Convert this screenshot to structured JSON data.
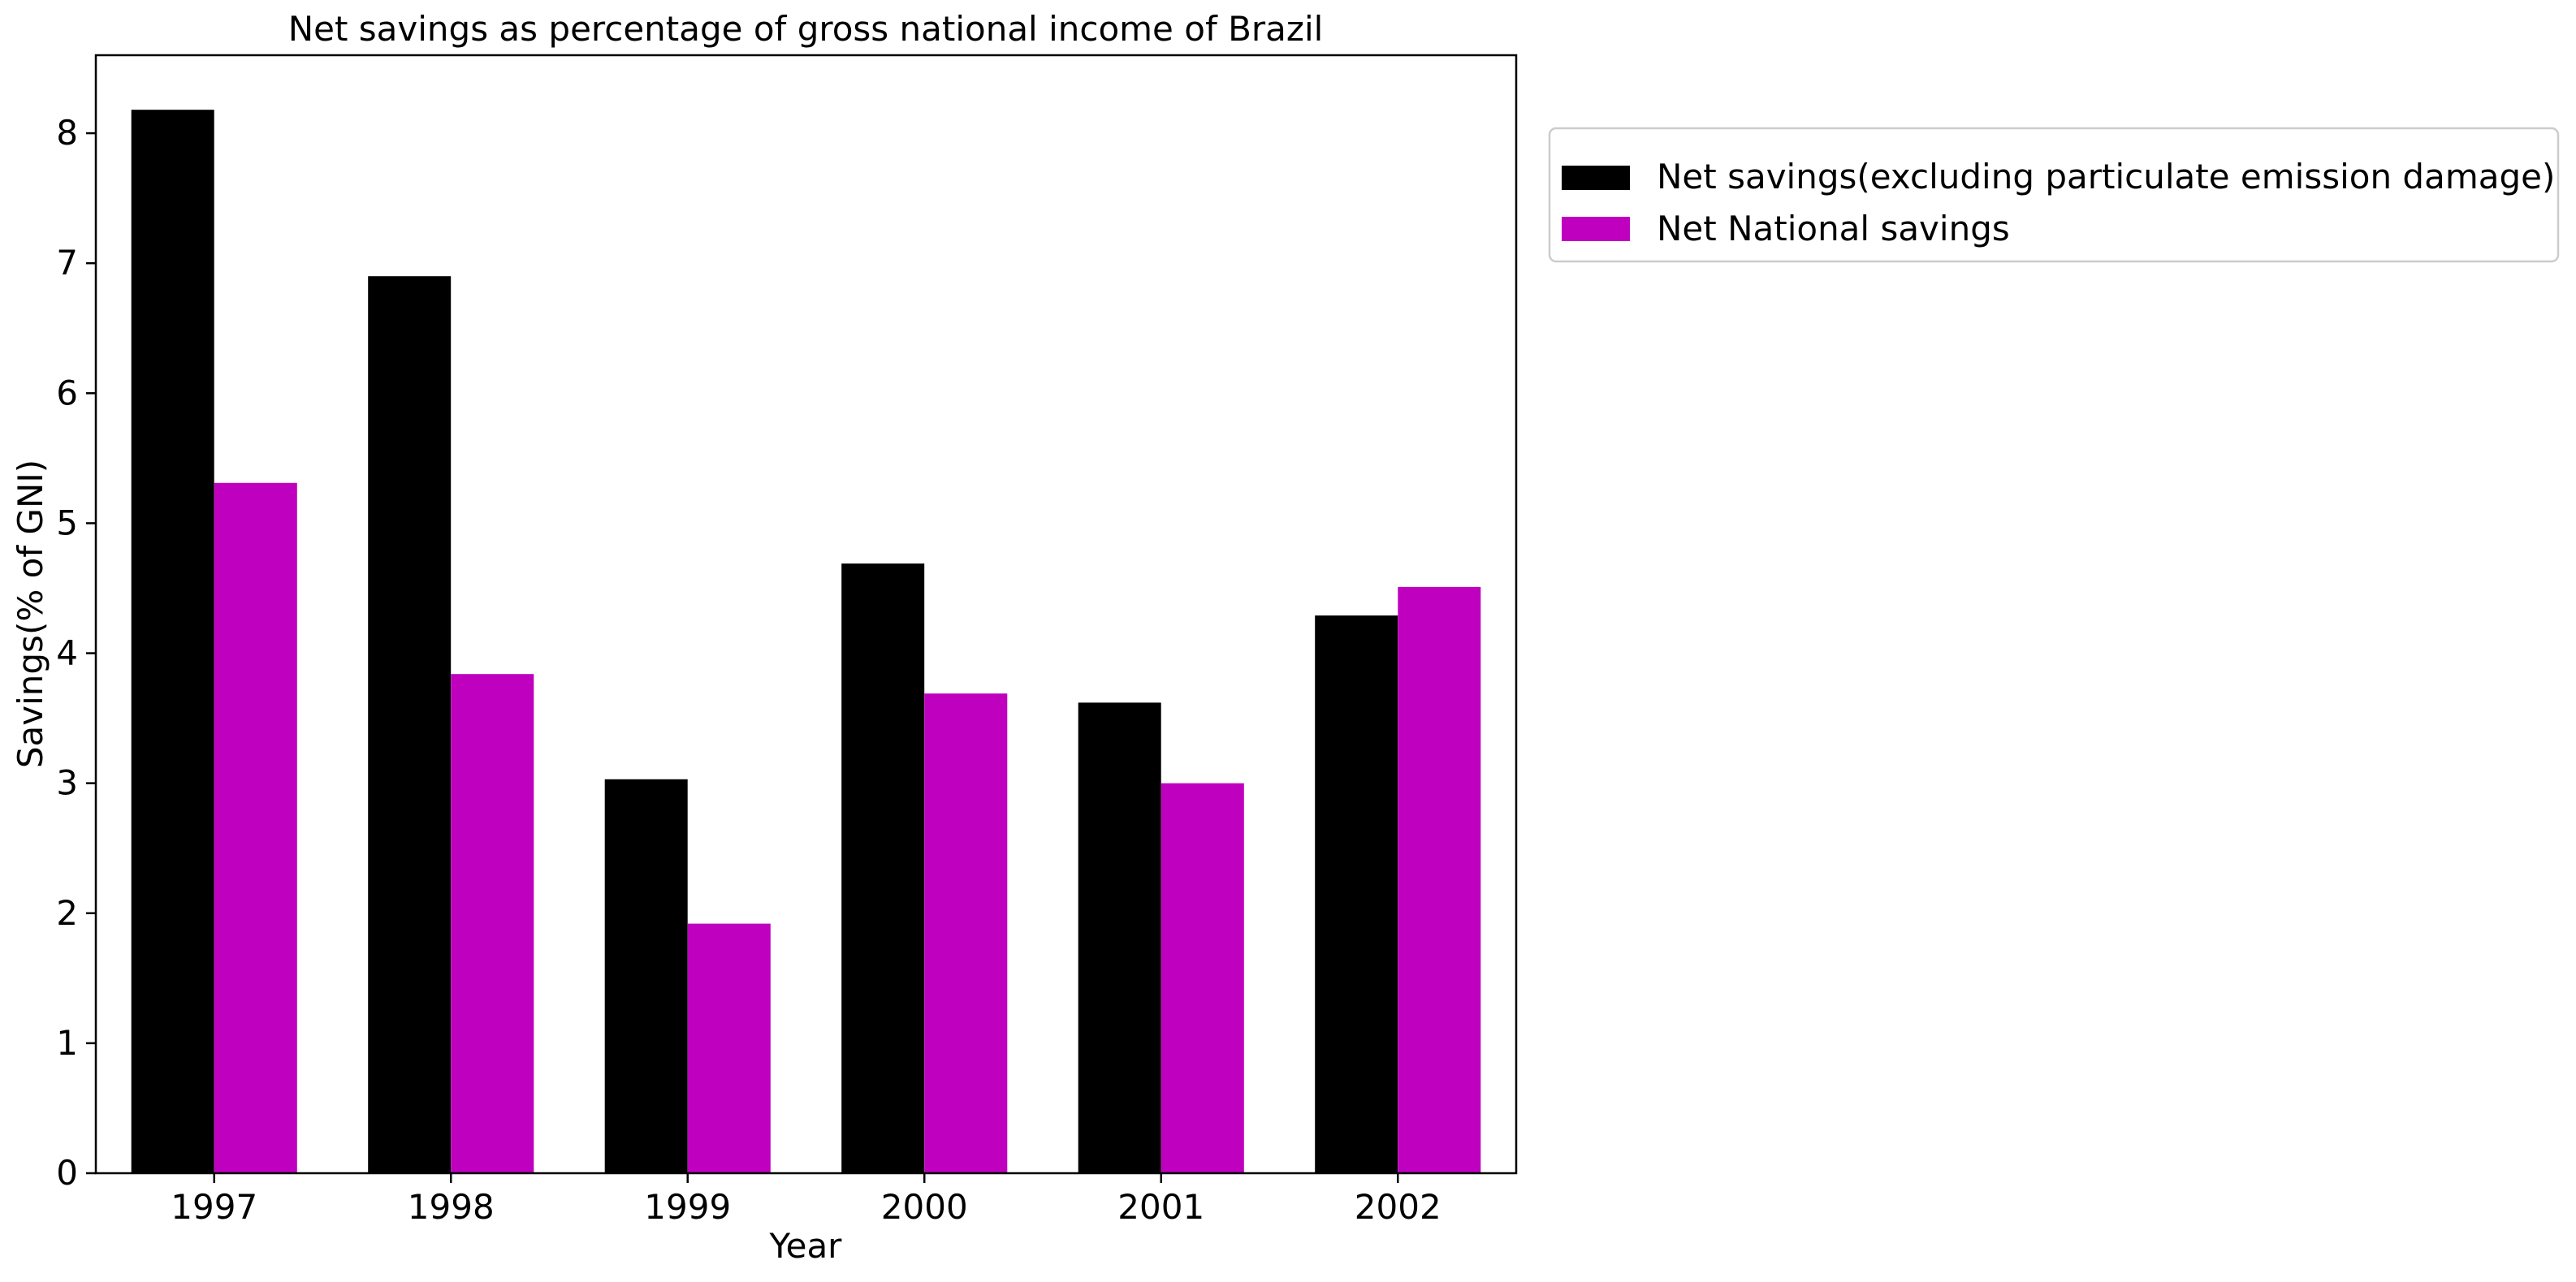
{
  "chart_data": {
    "type": "bar",
    "title": "Net savings as percentage of gross national income of Brazil",
    "xlabel": "Year",
    "ylabel": "Savings(% of GNI)",
    "categories": [
      "1997",
      "1998",
      "1999",
      "2000",
      "2001",
      "2002"
    ],
    "series": [
      {
        "name": "Net savings(excluding particulate emission damage)",
        "color": "#000000",
        "values": [
          8.18,
          6.9,
          3.03,
          4.69,
          3.62,
          4.29
        ]
      },
      {
        "name": "Net National savings",
        "color": "#bf00bf",
        "values": [
          5.31,
          3.84,
          1.92,
          3.69,
          3.0,
          4.51
        ]
      }
    ],
    "ylim": [
      0,
      8.6
    ],
    "yticks": [
      0,
      1,
      2,
      3,
      4,
      5,
      6,
      7,
      8
    ],
    "grid": false,
    "legend_position": "outside-top-right"
  }
}
